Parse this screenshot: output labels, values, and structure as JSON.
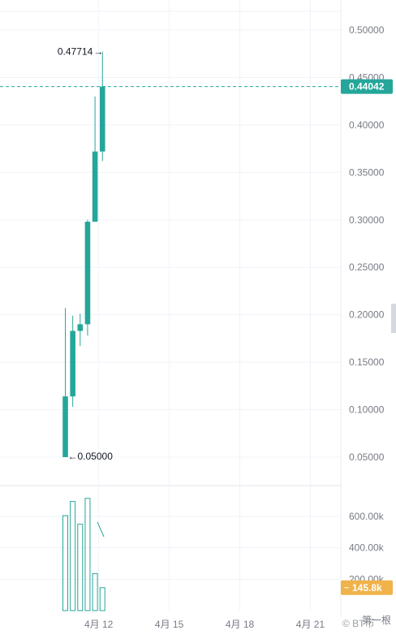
{
  "chart_data": [
    {
      "type": "candlestick",
      "price_axis": {
        "range": [
          0.0,
          0.53
        ],
        "ticks": [
          "0.50000",
          "0.45000",
          "0.40000",
          "0.35000",
          "0.30000",
          "0.25000",
          "0.20000",
          "0.15000",
          "0.10000",
          "0.05000"
        ],
        "tick_values": [
          0.5,
          0.45,
          0.4,
          0.35,
          0.3,
          0.25,
          0.2,
          0.15,
          0.1,
          0.05
        ]
      },
      "x_axis": {
        "ticks": [
          "4月 12",
          "4月 15",
          "4月 18",
          "4月 21"
        ],
        "tick_index": [
          4.5,
          14,
          23.5,
          33
        ]
      },
      "candles": [
        {
          "open": 0.05,
          "high": 0.207,
          "low": 0.05,
          "close": 0.114
        },
        {
          "open": 0.114,
          "high": 0.199,
          "low": 0.103,
          "close": 0.183
        },
        {
          "open": 0.183,
          "high": 0.201,
          "low": 0.167,
          "close": 0.19
        },
        {
          "open": 0.19,
          "high": 0.3,
          "low": 0.178,
          "close": 0.298
        },
        {
          "open": 0.298,
          "high": 0.43,
          "low": 0.298,
          "close": 0.372
        },
        {
          "open": 0.372,
          "high": 0.47714,
          "low": 0.362,
          "close": 0.44042
        }
      ],
      "last_price": 0.44042,
      "last_price_label": "0.44042",
      "high_label": "0.47714",
      "low_label": "0.05000",
      "colors": {
        "up": "#26a69a",
        "down": "#ef5350",
        "last_price": "#26a69a"
      }
    },
    {
      "type": "bar",
      "title": "volume",
      "values": [
        605000,
        695000,
        550000,
        715000,
        235000,
        145800
      ],
      "value_axis": {
        "range": [
          0,
          870000
        ],
        "ticks": [
          "600.00k",
          "400.00k",
          "200.00k"
        ],
        "tick_values": [
          600000,
          400000,
          200000
        ]
      },
      "last_value_label": "145.8k",
      "colors": {
        "bar": "#26a69a",
        "last_value": "#f0b24a"
      }
    }
  ],
  "ui": {
    "ma_line_present": true,
    "watermark": "© BT币",
    "corner_label": "第一根"
  }
}
